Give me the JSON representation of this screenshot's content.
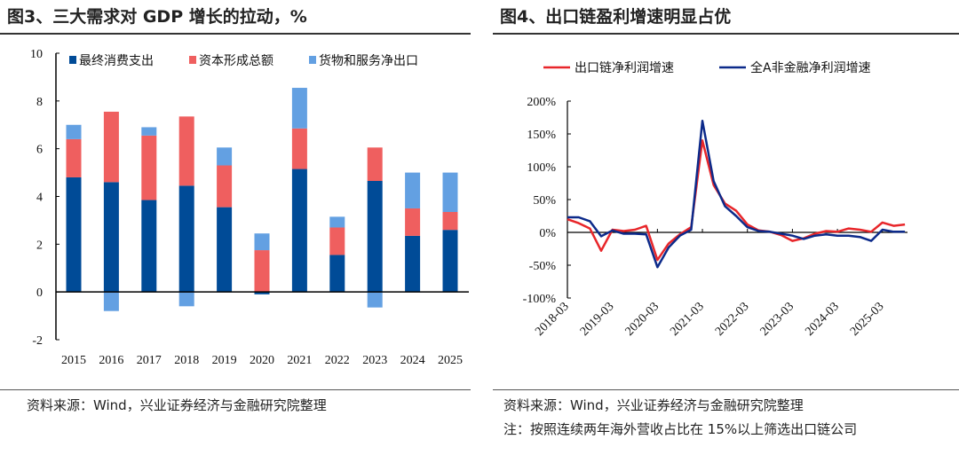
{
  "left": {
    "title": "图3、三大需求对 GDP 增长的拉动，%",
    "source": "资料来源：Wind，兴业证券经济与金融研究院整理"
  },
  "right": {
    "title": "图4、出口链盈利增速明显占优",
    "source": "资料来源：Wind，兴业证券经济与金融研究院整理",
    "note": "注：按照连续两年海外营收占比在 15%以上筛选出口链公司"
  },
  "chart_data": [
    {
      "type": "bar",
      "stacked": true,
      "categories": [
        "2015",
        "2016",
        "2017",
        "2018",
        "2019",
        "2020",
        "2021",
        "2022",
        "2023",
        "2024",
        "2025"
      ],
      "series": [
        {
          "name": "最终消费支出",
          "color": "#004b97",
          "values": [
            4.8,
            4.6,
            3.85,
            4.45,
            3.55,
            -0.1,
            5.15,
            1.55,
            4.65,
            2.35,
            2.6
          ]
        },
        {
          "name": "资本形成总额",
          "color": "#ef5f5f",
          "values": [
            1.6,
            2.95,
            2.7,
            2.9,
            1.75,
            1.75,
            1.7,
            1.15,
            1.4,
            1.15,
            0.75
          ]
        },
        {
          "name": "货物和服务净出口",
          "color": "#63a0e2",
          "values": [
            0.6,
            -0.8,
            0.35,
            -0.6,
            0.75,
            0.7,
            1.7,
            0.45,
            -0.65,
            1.5,
            1.65
          ]
        }
      ],
      "ylim": [
        -2,
        10
      ],
      "yticks": [
        "-2",
        "0",
        "2",
        "4",
        "6",
        "8",
        "10"
      ],
      "legend": "top",
      "grid": false
    },
    {
      "type": "line",
      "x_start": "2018-03",
      "x_frequency": "quarterly",
      "xticks": [
        "2018-03",
        "2019-03",
        "2020-03",
        "2021-03",
        "2022-03",
        "2023-03",
        "2024-03",
        "2025-03"
      ],
      "yticks": [
        "-100%",
        "-50%",
        "0%",
        "50%",
        "100%",
        "150%",
        "200%"
      ],
      "ylim": [
        -100,
        200
      ],
      "legend": "top",
      "grid": false,
      "series": [
        {
          "name": "出口链净利润增速",
          "color": "#e8262a",
          "values": [
            20,
            14,
            6,
            -28,
            4,
            2,
            4,
            10,
            -42,
            -17,
            -3,
            8,
            140,
            72,
            44,
            33,
            12,
            3,
            1,
            -4,
            -13,
            -9,
            -2,
            2,
            1,
            6,
            4,
            1,
            15,
            10,
            12
          ]
        },
        {
          "name": "全A非金融净利润增速",
          "color": "#0c2a8a",
          "values": [
            23,
            23,
            17,
            -6,
            3,
            -2,
            -2,
            -3,
            -53,
            -23,
            -5,
            4,
            170,
            78,
            40,
            25,
            8,
            2,
            1,
            -2,
            -5,
            -10,
            -5,
            -3,
            -5,
            -5,
            -7,
            -13,
            4,
            1,
            1
          ]
        }
      ]
    }
  ]
}
